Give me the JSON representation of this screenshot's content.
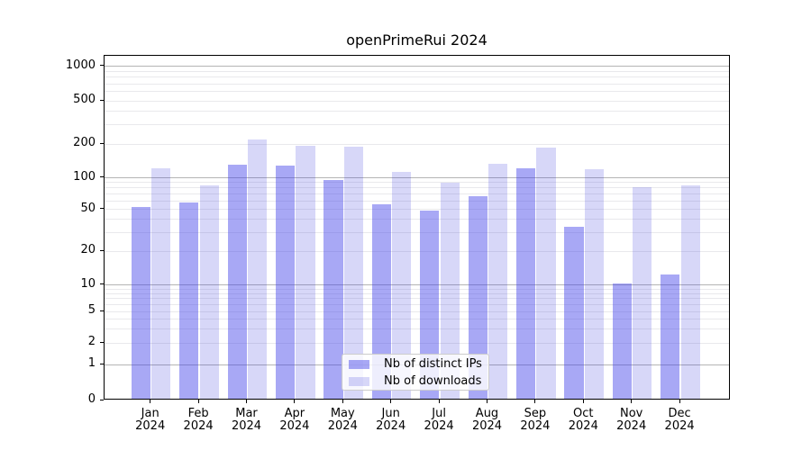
{
  "chart_data": {
    "type": "bar",
    "title": "openPrimeRui 2024",
    "year": "2024",
    "categories": [
      "Jan",
      "Feb",
      "Mar",
      "Apr",
      "May",
      "Jun",
      "Jul",
      "Aug",
      "Sep",
      "Oct",
      "Nov",
      "Dec"
    ],
    "series": [
      {
        "name": "Nb of distinct IPs",
        "color": "#a8a8f5",
        "color_rgba": "rgba(62,62,233,0.45)",
        "values": [
          51,
          56,
          126,
          124,
          92,
          54,
          47,
          64,
          117,
          33,
          10,
          12
        ]
      },
      {
        "name": "Nb of downloads",
        "color": "#d7d7f8",
        "color_rgba": "rgba(55,55,220,0.2)",
        "values": [
          117,
          82,
          211,
          185,
          181,
          109,
          87,
          129,
          179,
          116,
          78,
          82
        ]
      }
    ],
    "xlabel": "",
    "ylabel": "",
    "yscale": "log1p",
    "ylim": [
      0,
      1270
    ],
    "ytick_labels": [
      "0",
      "1",
      "2",
      "5",
      "10",
      "20",
      "50",
      "100",
      "200",
      "500",
      "1000"
    ],
    "major_grid_values": [
      1,
      10,
      100,
      1000
    ],
    "minor_grid_values": [
      2,
      3,
      4,
      5,
      6,
      7,
      8,
      9,
      20,
      30,
      40,
      50,
      60,
      70,
      80,
      90,
      200,
      300,
      400,
      500,
      600,
      700,
      800,
      900
    ],
    "grid": "horizontal major+minor",
    "legend_position": "lower-center-inside"
  },
  "colors": {
    "background": "#ffffff",
    "axis": "#000000",
    "text": "#000000",
    "major_grid": "#b4b4b4",
    "minor_grid": "#e9e9ec",
    "legend_border": "#cccccc",
    "legend_bg": "rgba(255,255,255,0.8)"
  }
}
